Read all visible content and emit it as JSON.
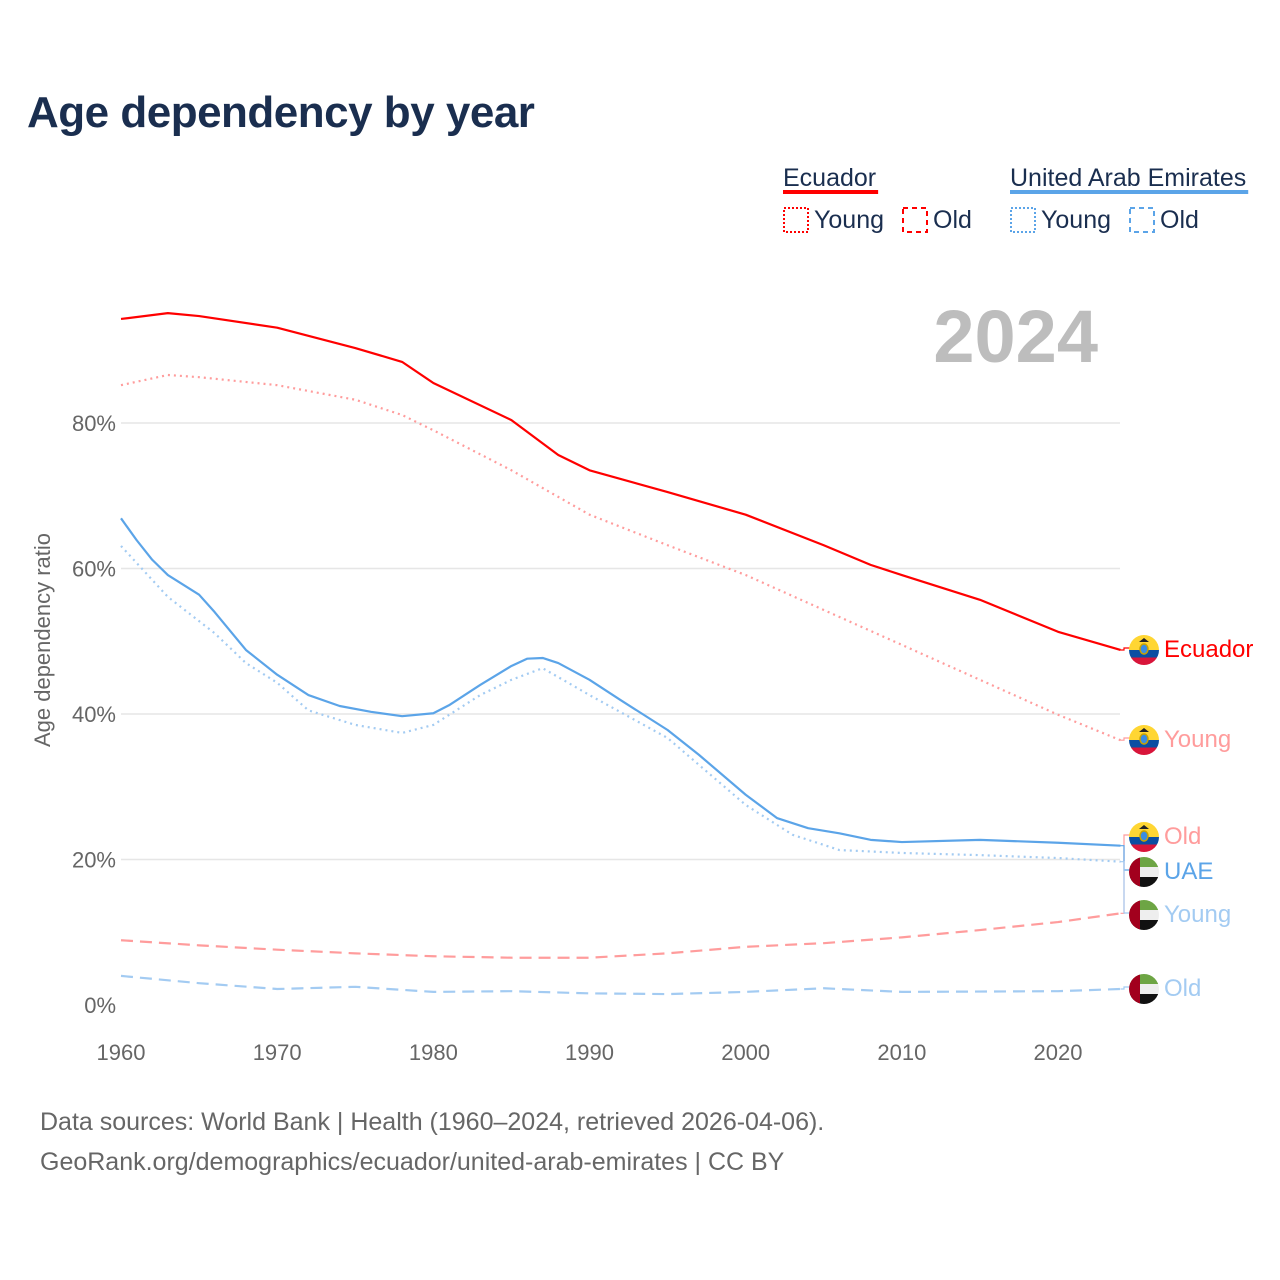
{
  "chart_data": {
    "type": "line",
    "title": "Age dependency by year",
    "ylabel": "Age dependency ratio",
    "xlabel": "",
    "year_label": "2024",
    "xlim": [
      1960,
      2024
    ],
    "ylim": [
      0,
      100
    ],
    "x_ticks": [
      1960,
      1970,
      1980,
      1990,
      2000,
      2010,
      2020
    ],
    "y_ticks": [
      0,
      20,
      40,
      60,
      80
    ],
    "y_tick_labels": [
      "0%",
      "20%",
      "40%",
      "60%",
      "80%"
    ],
    "grid": true,
    "legend": {
      "position": "top-right",
      "groups": [
        {
          "name": "Ecuador",
          "color": "#ff0000",
          "items": [
            "Young",
            "Old"
          ]
        },
        {
          "name": "United Arab Emirates",
          "color": "#5ba4e8",
          "items": [
            "Young",
            "Old"
          ]
        }
      ]
    },
    "series": [
      {
        "name": "Ecuador",
        "label": "Ecuador",
        "color": "#ff0000",
        "dash": "solid",
        "points": [
          [
            1960,
            94.3
          ],
          [
            1963,
            95.1
          ],
          [
            1965,
            94.7
          ],
          [
            1970,
            93.1
          ],
          [
            1975,
            90.3
          ],
          [
            1978,
            88.4
          ],
          [
            1980,
            85.5
          ],
          [
            1985,
            80.4
          ],
          [
            1988,
            75.6
          ],
          [
            1990,
            73.5
          ],
          [
            1995,
            70.5
          ],
          [
            2000,
            67.4
          ],
          [
            2005,
            63.2
          ],
          [
            2008,
            60.5
          ],
          [
            2010,
            59.1
          ],
          [
            2015,
            55.7
          ],
          [
            2020,
            51.3
          ],
          [
            2024,
            48.8
          ]
        ]
      },
      {
        "name": "Ecuador Young",
        "label": "Young",
        "color": "#ff9c9c",
        "dash": "dotted",
        "points": [
          [
            1960,
            85.2
          ],
          [
            1963,
            86.6
          ],
          [
            1965,
            86.3
          ],
          [
            1970,
            85.2
          ],
          [
            1975,
            83.2
          ],
          [
            1978,
            81.1
          ],
          [
            1980,
            79.0
          ],
          [
            1985,
            73.5
          ],
          [
            1990,
            67.4
          ],
          [
            1995,
            63.2
          ],
          [
            2000,
            59.1
          ],
          [
            2005,
            54.3
          ],
          [
            2010,
            49.5
          ],
          [
            2015,
            44.7
          ],
          [
            2020,
            39.9
          ],
          [
            2024,
            36.4
          ]
        ]
      },
      {
        "name": "Ecuador Old",
        "label": "Old",
        "color": "#ff9c9c",
        "dash": "dashed",
        "points": [
          [
            1960,
            8.9
          ],
          [
            1965,
            8.2
          ],
          [
            1970,
            7.6
          ],
          [
            1975,
            7.1
          ],
          [
            1980,
            6.7
          ],
          [
            1985,
            6.5
          ],
          [
            1990,
            6.5
          ],
          [
            1995,
            7.1
          ],
          [
            2000,
            8.0
          ],
          [
            2005,
            8.5
          ],
          [
            2010,
            9.3
          ],
          [
            2015,
            10.3
          ],
          [
            2020,
            11.4
          ],
          [
            2024,
            12.6
          ]
        ]
      },
      {
        "name": "UAE",
        "label": "UAE",
        "color": "#5ba4e8",
        "dash": "solid",
        "points": [
          [
            1960,
            66.9
          ],
          [
            1961,
            63.9
          ],
          [
            1962,
            61.2
          ],
          [
            1963,
            59.1
          ],
          [
            1965,
            56.4
          ],
          [
            1966,
            54.0
          ],
          [
            1968,
            48.8
          ],
          [
            1970,
            45.4
          ],
          [
            1972,
            42.6
          ],
          [
            1974,
            41.1
          ],
          [
            1976,
            40.3
          ],
          [
            1978,
            39.7
          ],
          [
            1980,
            40.1
          ],
          [
            1981,
            41.2
          ],
          [
            1983,
            44.0
          ],
          [
            1985,
            46.6
          ],
          [
            1986,
            47.6
          ],
          [
            1987,
            47.7
          ],
          [
            1988,
            47.0
          ],
          [
            1990,
            44.7
          ],
          [
            1992,
            41.9
          ],
          [
            1995,
            37.8
          ],
          [
            1997,
            34.4
          ],
          [
            2000,
            28.9
          ],
          [
            2002,
            25.7
          ],
          [
            2004,
            24.3
          ],
          [
            2006,
            23.6
          ],
          [
            2008,
            22.7
          ],
          [
            2010,
            22.4
          ],
          [
            2015,
            22.7
          ],
          [
            2020,
            22.3
          ],
          [
            2024,
            21.9
          ]
        ]
      },
      {
        "name": "UAE Young",
        "label": "Young",
        "color": "#a3cbf2",
        "dash": "dotted",
        "points": [
          [
            1960,
            63.1
          ],
          [
            1963,
            56.1
          ],
          [
            1966,
            51.1
          ],
          [
            1968,
            47.0
          ],
          [
            1970,
            44.3
          ],
          [
            1972,
            40.5
          ],
          [
            1975,
            38.5
          ],
          [
            1978,
            37.4
          ],
          [
            1980,
            38.5
          ],
          [
            1983,
            42.6
          ],
          [
            1985,
            44.7
          ],
          [
            1987,
            46.3
          ],
          [
            1990,
            42.6
          ],
          [
            1995,
            36.7
          ],
          [
            2000,
            27.5
          ],
          [
            2003,
            23.4
          ],
          [
            2006,
            21.3
          ],
          [
            2010,
            20.9
          ],
          [
            2015,
            20.6
          ],
          [
            2020,
            20.2
          ],
          [
            2024,
            19.7
          ]
        ]
      },
      {
        "name": "UAE Old",
        "label": "Old",
        "color": "#a3cbf2",
        "dash": "dashed",
        "points": [
          [
            1960,
            4.0
          ],
          [
            1965,
            3.0
          ],
          [
            1970,
            2.2
          ],
          [
            1975,
            2.5
          ],
          [
            1980,
            1.8
          ],
          [
            1985,
            1.9
          ],
          [
            1990,
            1.6
          ],
          [
            1995,
            1.5
          ],
          [
            2000,
            1.8
          ],
          [
            2005,
            2.3
          ],
          [
            2010,
            1.8
          ],
          [
            2020,
            1.9
          ],
          [
            2024,
            2.2
          ]
        ]
      }
    ]
  },
  "footer": {
    "line1": "Data sources: World Bank | Health (1960–2024, retrieved 2026-04-06).",
    "line2": "GeoRank.org/demographics/ecuador/united-arab-emirates | CC BY"
  }
}
